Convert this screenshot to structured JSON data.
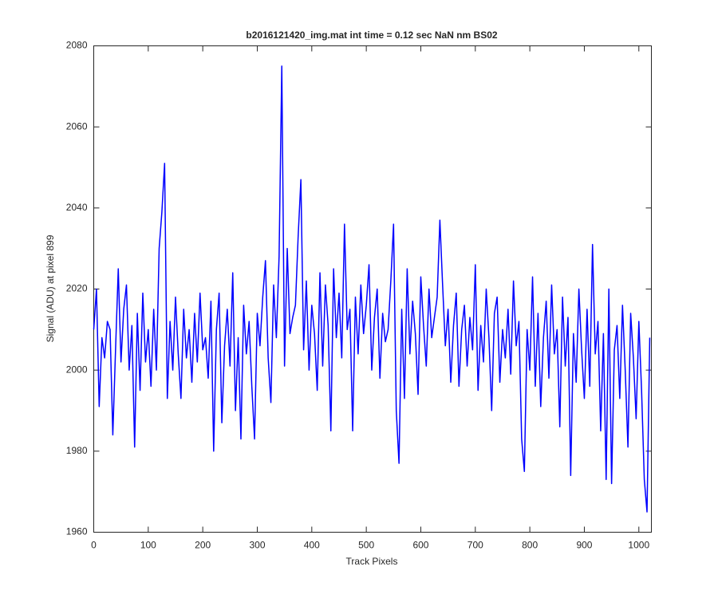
{
  "chart_data": {
    "type": "line",
    "title": "b2016121420_img.mat int time = 0.12 sec  NaN nm BS02",
    "xlabel": "Track Pixels",
    "ylabel": "Signal (ADU) at pixel 899",
    "color": "#0000ff",
    "xlim": [
      0,
      1023
    ],
    "ylim": [
      1960,
      2080
    ],
    "xticks": [
      0,
      100,
      200,
      300,
      400,
      500,
      600,
      700,
      800,
      900,
      1000
    ],
    "yticks": [
      1960,
      1980,
      2000,
      2020,
      2040,
      2060,
      2080
    ],
    "grid": false,
    "x": [
      0,
      5,
      10,
      15,
      20,
      25,
      30,
      35,
      40,
      45,
      50,
      55,
      60,
      65,
      70,
      75,
      80,
      85,
      90,
      95,
      100,
      105,
      110,
      115,
      120,
      125,
      130,
      135,
      140,
      145,
      150,
      155,
      160,
      165,
      170,
      175,
      180,
      185,
      190,
      195,
      200,
      205,
      210,
      215,
      220,
      225,
      230,
      235,
      240,
      245,
      250,
      255,
      260,
      265,
      270,
      275,
      280,
      285,
      290,
      295,
      300,
      305,
      310,
      315,
      320,
      325,
      330,
      335,
      340,
      345,
      350,
      355,
      360,
      365,
      370,
      375,
      380,
      385,
      390,
      395,
      400,
      405,
      410,
      415,
      420,
      425,
      430,
      435,
      440,
      445,
      450,
      455,
      460,
      465,
      470,
      475,
      480,
      485,
      490,
      495,
      500,
      505,
      510,
      515,
      520,
      525,
      530,
      535,
      540,
      545,
      550,
      555,
      560,
      565,
      570,
      575,
      580,
      585,
      590,
      595,
      600,
      605,
      610,
      615,
      620,
      625,
      630,
      635,
      640,
      645,
      650,
      655,
      660,
      665,
      670,
      675,
      680,
      685,
      690,
      695,
      700,
      705,
      710,
      715,
      720,
      725,
      730,
      735,
      740,
      745,
      750,
      755,
      760,
      765,
      770,
      775,
      780,
      785,
      790,
      795,
      800,
      805,
      810,
      815,
      820,
      825,
      830,
      835,
      840,
      845,
      850,
      855,
      860,
      865,
      870,
      875,
      880,
      885,
      890,
      895,
      900,
      905,
      910,
      915,
      920,
      925,
      930,
      935,
      940,
      945,
      950,
      955,
      960,
      965,
      970,
      975,
      980,
      985,
      990,
      995,
      1000,
      1005,
      1010,
      1015,
      1020
    ],
    "values": [
      2010,
      2020,
      1991,
      2008,
      2003,
      2012,
      2010,
      1984,
      2005,
      2025,
      2002,
      2015,
      2021,
      2000,
      2011,
      1981,
      2014,
      1995,
      2019,
      2002,
      2010,
      1996,
      2015,
      2000,
      2030,
      2039,
      2051,
      1993,
      2012,
      2000,
      2018,
      2004,
      1993,
      2015,
      2003,
      2010,
      1997,
      2014,
      2002,
      2019,
      2005,
      2008,
      1998,
      2017,
      1980,
      2010,
      2019,
      1987,
      2006,
      2015,
      2001,
      2024,
      1990,
      2008,
      1983,
      2016,
      2004,
      2012,
      1996,
      1983,
      2014,
      2006,
      2018,
      2027,
      2003,
      1992,
      2021,
      2008,
      2028,
      2075,
      2001,
      2030,
      2009,
      2013,
      2016,
      2033,
      2047,
      2005,
      2022,
      2000,
      2016,
      2009,
      1995,
      2024,
      2001,
      2021,
      2011,
      1985,
      2025,
      2008,
      2019,
      2003,
      2036,
      2010,
      2015,
      1985,
      2018,
      2004,
      2021,
      2009,
      2016,
      2026,
      2000,
      2013,
      2020,
      1998,
      2014,
      2007,
      2010,
      2022,
      2036,
      1990,
      1977,
      2015,
      1993,
      2025,
      2004,
      2017,
      2009,
      1994,
      2023,
      2011,
      2001,
      2020,
      2008,
      2013,
      2018,
      2037,
      2021,
      2006,
      2015,
      1997,
      2011,
      2019,
      1996,
      2010,
      2016,
      2001,
      2013,
      2005,
      2026,
      1995,
      2011,
      2002,
      2020,
      2008,
      1990,
      2014,
      2018,
      1997,
      2010,
      2003,
      2015,
      1999,
      2022,
      2006,
      2012,
      1983,
      1975,
      2010,
      2000,
      2023,
      1996,
      2014,
      1991,
      2008,
      2017,
      1998,
      2021,
      2004,
      2010,
      1986,
      2018,
      2001,
      2013,
      1974,
      2009,
      1997,
      2020,
      2005,
      1993,
      2015,
      1996,
      2031,
      2004,
      2012,
      1985,
      2009,
      1973,
      2020,
      1972,
      2005,
      2011,
      1993,
      2016,
      2000,
      1981,
      2014,
      2003,
      1988,
      2012,
      1995,
      1973,
      1965,
      2008
    ]
  }
}
